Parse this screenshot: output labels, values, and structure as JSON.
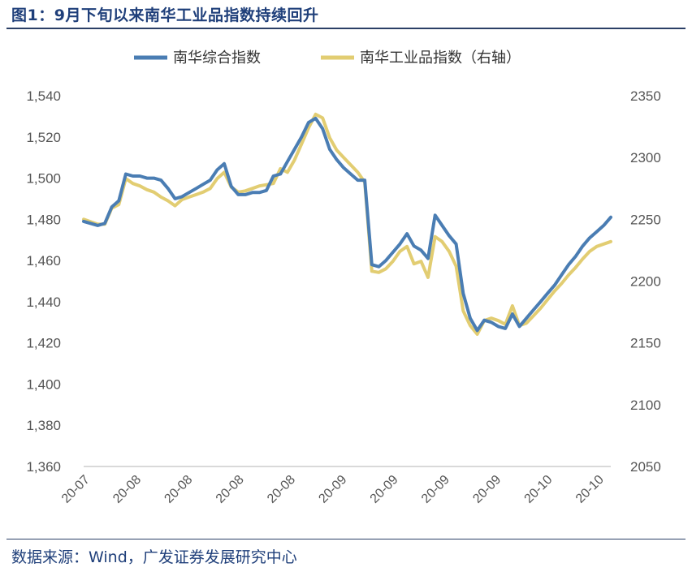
{
  "figure": {
    "title": "图1：9月下旬以来南华工业品指数持续回升",
    "source": "数据来源：Wind，广发证券发展研究中心"
  },
  "chart_data": {
    "type": "line",
    "legend_position": "top",
    "grid": false,
    "y_left": {
      "ylim": [
        1360,
        1540
      ],
      "ticks": [
        1360,
        1380,
        1400,
        1420,
        1440,
        1460,
        1480,
        1500,
        1520,
        1540
      ]
    },
    "y_right": {
      "ylim": [
        2050,
        2350
      ],
      "ticks": [
        2050,
        2100,
        2150,
        2200,
        2250,
        2300,
        2350
      ]
    },
    "x_tick_labels": [
      "20-07",
      "20-08",
      "20-08",
      "20-08",
      "20-08",
      "20-09",
      "20-09",
      "20-09",
      "20-09",
      "20-10",
      "20-10"
    ],
    "series": [
      {
        "name": "南华综合指数",
        "axis": "left",
        "color": "#4a7db3",
        "x": [
          0,
          1,
          2,
          3,
          4,
          5,
          6,
          7,
          8,
          9,
          10,
          11,
          12,
          13,
          14,
          15,
          16,
          17,
          18,
          19,
          20,
          21,
          22,
          23,
          24,
          25,
          26,
          27,
          28,
          29,
          30,
          31,
          32,
          33,
          34,
          35,
          36,
          37,
          38,
          39,
          40,
          41,
          42,
          43,
          44,
          45,
          46,
          47,
          48,
          49,
          50,
          51,
          52,
          53,
          54,
          55,
          56,
          57,
          58,
          59,
          60,
          61,
          62,
          63,
          64,
          65,
          66,
          67,
          68,
          69,
          70,
          71,
          72,
          73,
          74,
          75
        ],
        "values": [
          1479,
          1478,
          1477,
          1478,
          1486,
          1489,
          1502,
          1501,
          1501,
          1500,
          1500,
          1499,
          1495,
          1490,
          1491,
          1493,
          1495,
          1497,
          1499,
          1504,
          1507,
          1496,
          1492,
          1492,
          1493,
          1493,
          1494,
          1501,
          1502,
          1508,
          1514,
          1520,
          1527,
          1529,
          1524,
          1514,
          1509,
          1505,
          1502,
          1499,
          1499,
          1458,
          1457,
          1460,
          1464,
          1468,
          1473,
          1467,
          1465,
          1461,
          1482,
          1477,
          1472,
          1468,
          1444,
          1432,
          1426,
          1431,
          1430,
          1428,
          1427,
          1434,
          1428,
          1432,
          1436,
          1440,
          1444,
          1448,
          1453,
          1458,
          1462,
          1467,
          1471,
          1474,
          1477,
          1481
        ]
      },
      {
        "name": "南华工业品指数（右轴）",
        "axis": "right",
        "color": "#e2cd72",
        "x": [
          0,
          1,
          2,
          3,
          4,
          5,
          6,
          7,
          8,
          9,
          10,
          11,
          12,
          13,
          14,
          15,
          16,
          17,
          18,
          19,
          20,
          21,
          22,
          23,
          24,
          25,
          26,
          27,
          28,
          29,
          30,
          31,
          32,
          33,
          34,
          35,
          36,
          37,
          38,
          39,
          40,
          41,
          42,
          43,
          44,
          45,
          46,
          47,
          48,
          49,
          50,
          51,
          52,
          53,
          54,
          55,
          56,
          57,
          58,
          59,
          60,
          61,
          62,
          63,
          64,
          65,
          66,
          67,
          68,
          69,
          70,
          71,
          72,
          73,
          74,
          75
        ],
        "values": [
          2250,
          2248,
          2246,
          2246,
          2259,
          2262,
          2283,
          2279,
          2277,
          2274,
          2272,
          2268,
          2265,
          2261,
          2266,
          2268,
          2270,
          2272,
          2275,
          2283,
          2288,
          2276,
          2272,
          2273,
          2275,
          2277,
          2278,
          2279,
          2291,
          2288,
          2298,
          2311,
          2324,
          2335,
          2332,
          2316,
          2306,
          2300,
          2294,
          2288,
          2280,
          2208,
          2207,
          2210,
          2216,
          2224,
          2228,
          2214,
          2216,
          2203,
          2236,
          2232,
          2224,
          2212,
          2176,
          2164,
          2157,
          2168,
          2170,
          2168,
          2165,
          2180,
          2164,
          2166,
          2172,
          2178,
          2185,
          2192,
          2198,
          2205,
          2211,
          2218,
          2224,
          2228,
          2230,
          2232
        ]
      }
    ]
  }
}
